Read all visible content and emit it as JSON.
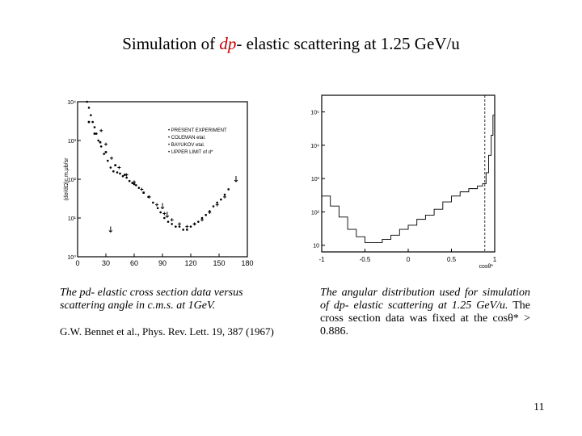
{
  "slide": {
    "title_pre": "Simulation of ",
    "title_highlight": "dp",
    "title_post": "- elastic scattering at 1.25 GeV/u",
    "page_number": "11",
    "highlight_color": "#c00000"
  },
  "left_caption": {
    "text": "The pd- elastic cross section data versus scattering angle in c.m.s. at 1GeV.",
    "reference": "G.W. Bennet et al., Phys. Rev. Lett. 19, 387 (1967)"
  },
  "right_caption": {
    "italic_part": "The angular distribution used for simulation of dp- elastic scattering at 1.25 GeV/u.",
    "normal_part": " The cross section data was fixed at the cosθ* > 0.886."
  },
  "chart_data": [
    {
      "type": "scatter",
      "ylabel": "(dσ/dΩ)c.m.μb/sr",
      "xlim": [
        0,
        180
      ],
      "ylim_log10": [
        0,
        4
      ],
      "x_ticks": [
        "0",
        "30",
        "60",
        "90",
        "120",
        "150",
        "180"
      ],
      "y_ticks": [
        "10⁰",
        "10¹",
        "10²",
        "10³",
        "10⁴"
      ],
      "y_ticks_label_positions": [
        0,
        1,
        2,
        3,
        4
      ],
      "legend": [
        "PRESENT EXPERIMENT",
        "COLEMAN etal.",
        "BAYUKOV etal.",
        "UPPER LIMIT of d*"
      ],
      "legend_placement": "top-right",
      "series": [
        {
          "marker": "dot",
          "x": [
            10,
            12,
            14,
            16,
            18,
            20,
            22,
            25,
            28,
            32,
            35,
            38,
            42,
            45,
            48,
            52,
            55,
            58,
            62,
            65,
            70,
            75,
            80,
            85,
            88,
            92,
            96,
            100,
            104,
            108,
            112,
            116,
            120,
            124,
            128,
            132,
            136,
            140,
            144,
            148,
            152,
            156,
            160
          ],
          "y": [
            10000,
            7000,
            4500,
            3000,
            2200,
            1500,
            1000,
            700,
            450,
            300,
            200,
            160,
            150,
            140,
            120,
            110,
            90,
            80,
            70,
            60,
            45,
            35,
            25,
            18,
            14,
            10,
            8,
            7,
            6,
            6,
            5,
            5,
            6,
            7,
            8,
            10,
            12,
            15,
            20,
            25,
            30,
            40,
            55
          ]
        },
        {
          "marker": "cross",
          "x": [
            25,
            30,
            36,
            44,
            52,
            60,
            68,
            76,
            84,
            92,
            100,
            108,
            116,
            124,
            132,
            140,
            148,
            156
          ],
          "y": [
            1800,
            800,
            350,
            200,
            130,
            85,
            55,
            35,
            22,
            13,
            9,
            7,
            6,
            7,
            9,
            14,
            22,
            35
          ]
        },
        {
          "marker": "square",
          "x": [
            12,
            18,
            24,
            30,
            40,
            50,
            60,
            70
          ],
          "y": [
            3000,
            1500,
            900,
            500,
            230,
            130,
            75,
            45
          ]
        },
        {
          "marker": "upper-limit",
          "x": [
            35,
            90,
            95,
            168
          ],
          "y": [
            5,
            20,
            12,
            100
          ]
        }
      ]
    },
    {
      "type": "line",
      "xlabel": "cosθ*",
      "xlim": [
        -1,
        1
      ],
      "x_ticks": [
        "-1",
        "-0.5",
        "0",
        "0.5",
        "1"
      ],
      "y_ticks": [
        "10",
        "10²",
        "10³",
        "10⁴",
        "10⁵"
      ],
      "ylim_log10": [
        0.8,
        5.5
      ],
      "cut_line_x": 0.886,
      "x": [
        -1,
        -0.9,
        -0.8,
        -0.7,
        -0.6,
        -0.5,
        -0.4,
        -0.3,
        -0.2,
        -0.1,
        0,
        0.1,
        0.2,
        0.3,
        0.4,
        0.5,
        0.6,
        0.7,
        0.8,
        0.86,
        0.9,
        0.93,
        0.96,
        0.98,
        1.0
      ],
      "y": [
        300,
        150,
        70,
        30,
        18,
        12,
        12,
        15,
        20,
        30,
        40,
        60,
        80,
        120,
        200,
        300,
        400,
        500,
        600,
        700,
        1500,
        5000,
        20000,
        80000,
        200000
      ]
    }
  ]
}
